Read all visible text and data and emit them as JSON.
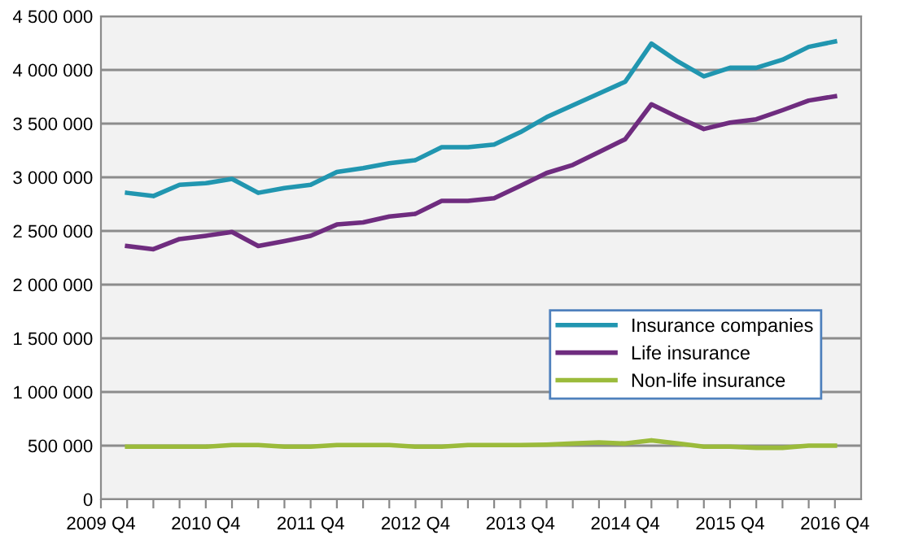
{
  "chart_data": {
    "type": "line",
    "categories": [
      "2009 Q4",
      null,
      null,
      null,
      "2010 Q4",
      null,
      null,
      null,
      "2011 Q4",
      null,
      null,
      null,
      "2012 Q4",
      null,
      null,
      null,
      "2013 Q4",
      null,
      null,
      null,
      "2014 Q4",
      null,
      null,
      null,
      "2015 Q4",
      null,
      null,
      null,
      "2016 Q4"
    ],
    "series": [
      {
        "name": "Insurance companies",
        "color": "#2196b0",
        "values": [
          null,
          2855000,
          2825000,
          2930000,
          2945000,
          2985000,
          2855000,
          2900000,
          2930000,
          3050000,
          3085000,
          3130000,
          3160000,
          3280000,
          3280000,
          3305000,
          3420000,
          3560000,
          3670000,
          3780000,
          3890000,
          4245000,
          4080000,
          3940000,
          4020000,
          4020000,
          4095000,
          4215000,
          4265000
        ]
      },
      {
        "name": "Life insurance",
        "color": "#6f2c7f",
        "values": [
          null,
          2360000,
          2330000,
          2425000,
          2455000,
          2490000,
          2360000,
          2405000,
          2455000,
          2560000,
          2580000,
          2635000,
          2660000,
          2780000,
          2780000,
          2805000,
          2920000,
          3040000,
          3115000,
          3235000,
          3355000,
          3680000,
          3560000,
          3450000,
          3510000,
          3540000,
          3625000,
          3715000,
          3755000
        ]
      },
      {
        "name": "Non-life insurance",
        "color": "#9bbb3b",
        "values": [
          null,
          490000,
          490000,
          490000,
          490000,
          505000,
          505000,
          490000,
          490000,
          505000,
          505000,
          505000,
          490000,
          490000,
          505000,
          505000,
          505000,
          510000,
          520000,
          530000,
          520000,
          550000,
          520000,
          490000,
          490000,
          480000,
          480000,
          500000,
          500000
        ]
      }
    ],
    "ylim": [
      0,
      4500000
    ],
    "yticks": [
      0,
      {
        "value": 500000,
        "label": "500 000"
      },
      {
        "value": 1000000,
        "label": "1 000 000"
      },
      {
        "value": 1500000,
        "label": "1 500 000"
      },
      {
        "value": 2000000,
        "label": "2 000 000"
      },
      {
        "value": 2500000,
        "label": "2 500 000"
      },
      {
        "value": 3000000,
        "label": "3 000 000"
      },
      {
        "value": 3500000,
        "label": "3 500 000"
      },
      {
        "value": 4000000,
        "label": "4 000 000"
      },
      {
        "value": 4500000,
        "label": "4 500 000"
      }
    ],
    "grid": "y",
    "legend": "right",
    "marker": "none",
    "line_style": "solid"
  }
}
